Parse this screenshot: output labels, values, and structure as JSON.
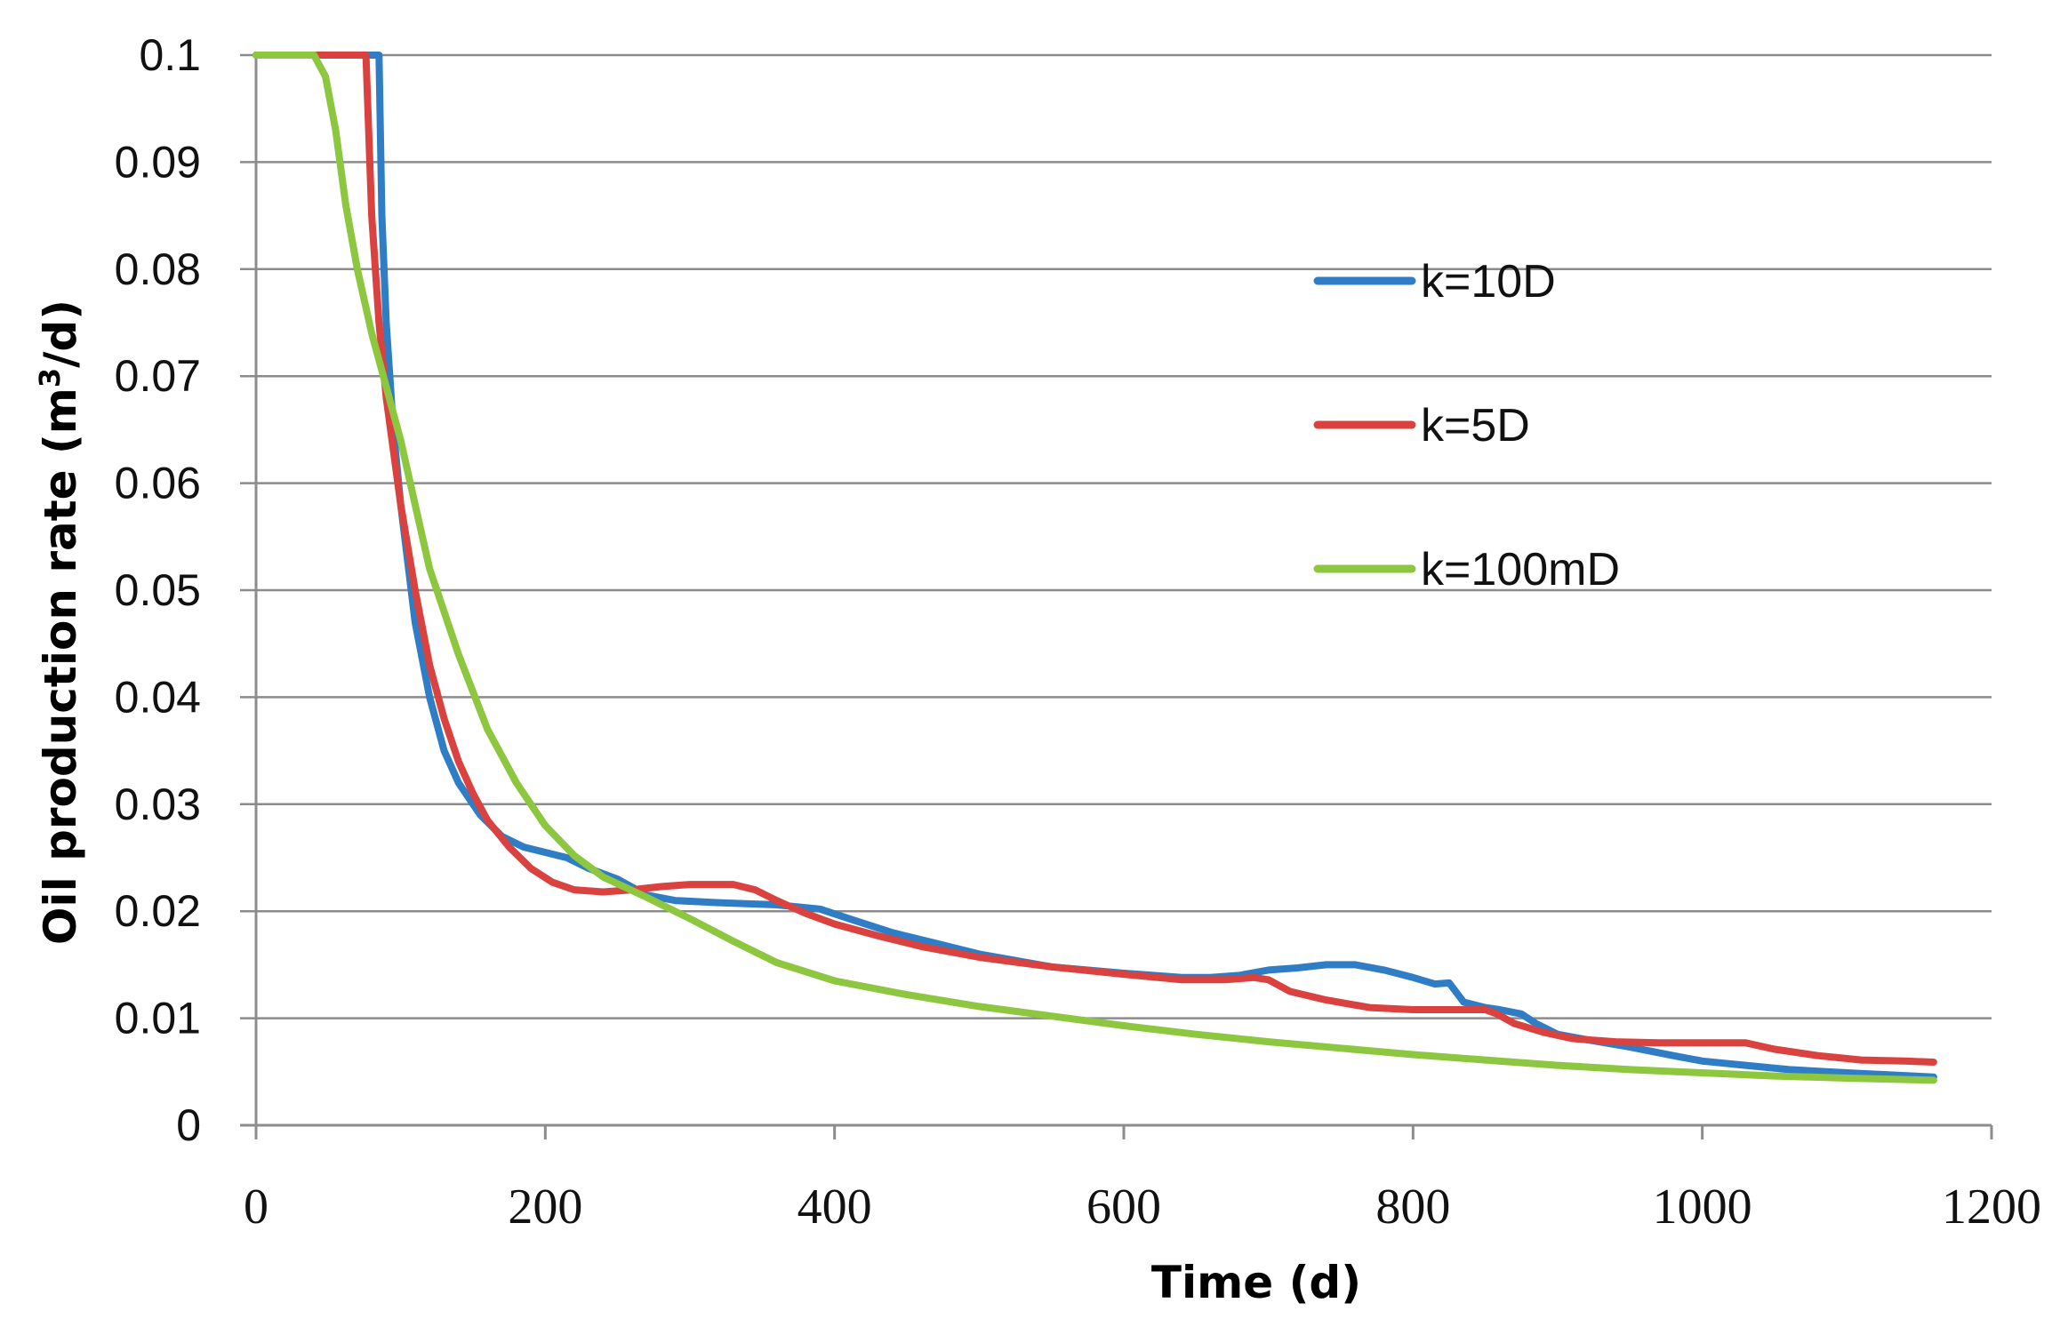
{
  "chart_data": {
    "type": "line",
    "title": "",
    "xlabel": "Time (d)",
    "ylabel": {
      "prefix": "Oil production rate (m",
      "sup": "3",
      "suffix": "/d)"
    },
    "xlim": [
      0,
      1200
    ],
    "ylim": [
      0,
      0.1
    ],
    "x_ticks": [
      0,
      200,
      400,
      600,
      800,
      1000,
      1200
    ],
    "x_tick_labels": [
      "0",
      "200",
      "400",
      "600",
      "800",
      "1000",
      "1200"
    ],
    "y_ticks": [
      0,
      0.01,
      0.02,
      0.03,
      0.04,
      0.05,
      0.06,
      0.07,
      0.08,
      0.09,
      0.1
    ],
    "y_tick_labels": [
      "0",
      "0.01",
      "0.02",
      "0.03",
      "0.04",
      "0.05",
      "0.06",
      "0.07",
      "0.08",
      "0.09",
      "0.1"
    ],
    "grid": true,
    "legend_position": "right-middle",
    "series": [
      {
        "name": "k=10D",
        "color": "#2f7ec5",
        "points": [
          [
            0,
            0.1
          ],
          [
            82,
            0.1
          ],
          [
            85,
            0.1
          ],
          [
            87,
            0.085
          ],
          [
            90,
            0.075
          ],
          [
            95,
            0.065
          ],
          [
            100,
            0.058
          ],
          [
            110,
            0.047
          ],
          [
            120,
            0.04
          ],
          [
            130,
            0.035
          ],
          [
            140,
            0.032
          ],
          [
            155,
            0.029
          ],
          [
            170,
            0.027
          ],
          [
            185,
            0.026
          ],
          [
            200,
            0.0255
          ],
          [
            215,
            0.025
          ],
          [
            230,
            0.024
          ],
          [
            250,
            0.023
          ],
          [
            270,
            0.0215
          ],
          [
            290,
            0.021
          ],
          [
            320,
            0.0208
          ],
          [
            360,
            0.0206
          ],
          [
            390,
            0.0202
          ],
          [
            410,
            0.0193
          ],
          [
            440,
            0.018
          ],
          [
            470,
            0.017
          ],
          [
            500,
            0.016
          ],
          [
            550,
            0.0148
          ],
          [
            600,
            0.0142
          ],
          [
            640,
            0.0138
          ],
          [
            660,
            0.0138
          ],
          [
            680,
            0.014
          ],
          [
            700,
            0.0145
          ],
          [
            720,
            0.0147
          ],
          [
            740,
            0.015
          ],
          [
            760,
            0.015
          ],
          [
            780,
            0.0145
          ],
          [
            800,
            0.0138
          ],
          [
            815,
            0.0132
          ],
          [
            825,
            0.0133
          ],
          [
            835,
            0.0115
          ],
          [
            850,
            0.011
          ],
          [
            860,
            0.0108
          ],
          [
            875,
            0.0104
          ],
          [
            885,
            0.0095
          ],
          [
            900,
            0.0085
          ],
          [
            920,
            0.008
          ],
          [
            950,
            0.0073
          ],
          [
            980,
            0.0065
          ],
          [
            1000,
            0.006
          ],
          [
            1030,
            0.0056
          ],
          [
            1060,
            0.0052
          ],
          [
            1100,
            0.0049
          ],
          [
            1130,
            0.0047
          ],
          [
            1160,
            0.0045
          ]
        ]
      },
      {
        "name": "k=5D",
        "color": "#d9423f",
        "points": [
          [
            0,
            0.1
          ],
          [
            72,
            0.1
          ],
          [
            76,
            0.1
          ],
          [
            80,
            0.085
          ],
          [
            85,
            0.075
          ],
          [
            90,
            0.068
          ],
          [
            100,
            0.058
          ],
          [
            110,
            0.05
          ],
          [
            120,
            0.043
          ],
          [
            130,
            0.038
          ],
          [
            140,
            0.034
          ],
          [
            150,
            0.031
          ],
          [
            160,
            0.0285
          ],
          [
            175,
            0.026
          ],
          [
            190,
            0.024
          ],
          [
            205,
            0.0227
          ],
          [
            220,
            0.022
          ],
          [
            240,
            0.0218
          ],
          [
            260,
            0.022
          ],
          [
            280,
            0.0223
          ],
          [
            300,
            0.0225
          ],
          [
            330,
            0.0225
          ],
          [
            345,
            0.022
          ],
          [
            360,
            0.021
          ],
          [
            380,
            0.0198
          ],
          [
            400,
            0.0188
          ],
          [
            430,
            0.0177
          ],
          [
            460,
            0.0167
          ],
          [
            500,
            0.0157
          ],
          [
            550,
            0.0148
          ],
          [
            600,
            0.0141
          ],
          [
            640,
            0.0136
          ],
          [
            670,
            0.0136
          ],
          [
            690,
            0.0138
          ],
          [
            700,
            0.0136
          ],
          [
            715,
            0.0125
          ],
          [
            740,
            0.0117
          ],
          [
            770,
            0.011
          ],
          [
            800,
            0.0108
          ],
          [
            830,
            0.0108
          ],
          [
            850,
            0.0108
          ],
          [
            858,
            0.0104
          ],
          [
            870,
            0.0095
          ],
          [
            890,
            0.0087
          ],
          [
            910,
            0.0081
          ],
          [
            940,
            0.0078
          ],
          [
            970,
            0.0077
          ],
          [
            1000,
            0.0077
          ],
          [
            1030,
            0.0077
          ],
          [
            1050,
            0.0071
          ],
          [
            1080,
            0.0065
          ],
          [
            1110,
            0.0061
          ],
          [
            1140,
            0.006
          ],
          [
            1160,
            0.0059
          ]
        ]
      },
      {
        "name": "k=100mD",
        "color": "#8dc63f",
        "points": [
          [
            0,
            0.1
          ],
          [
            40,
            0.1
          ],
          [
            48,
            0.098
          ],
          [
            55,
            0.093
          ],
          [
            62,
            0.086
          ],
          [
            70,
            0.08
          ],
          [
            80,
            0.074
          ],
          [
            90,
            0.069
          ],
          [
            100,
            0.064
          ],
          [
            110,
            0.058
          ],
          [
            120,
            0.052
          ],
          [
            140,
            0.044
          ],
          [
            160,
            0.037
          ],
          [
            180,
            0.032
          ],
          [
            200,
            0.028
          ],
          [
            220,
            0.0252
          ],
          [
            240,
            0.0232
          ],
          [
            270,
            0.0213
          ],
          [
            300,
            0.0193
          ],
          [
            330,
            0.0172
          ],
          [
            360,
            0.0152
          ],
          [
            400,
            0.0135
          ],
          [
            450,
            0.0122
          ],
          [
            500,
            0.0111
          ],
          [
            550,
            0.0102
          ],
          [
            600,
            0.0093
          ],
          [
            650,
            0.0085
          ],
          [
            700,
            0.0078
          ],
          [
            750,
            0.0072
          ],
          [
            800,
            0.0066
          ],
          [
            850,
            0.0061
          ],
          [
            900,
            0.0056
          ],
          [
            950,
            0.0052
          ],
          [
            1000,
            0.0049
          ],
          [
            1050,
            0.0046
          ],
          [
            1100,
            0.0044
          ],
          [
            1160,
            0.0042
          ]
        ]
      }
    ]
  }
}
